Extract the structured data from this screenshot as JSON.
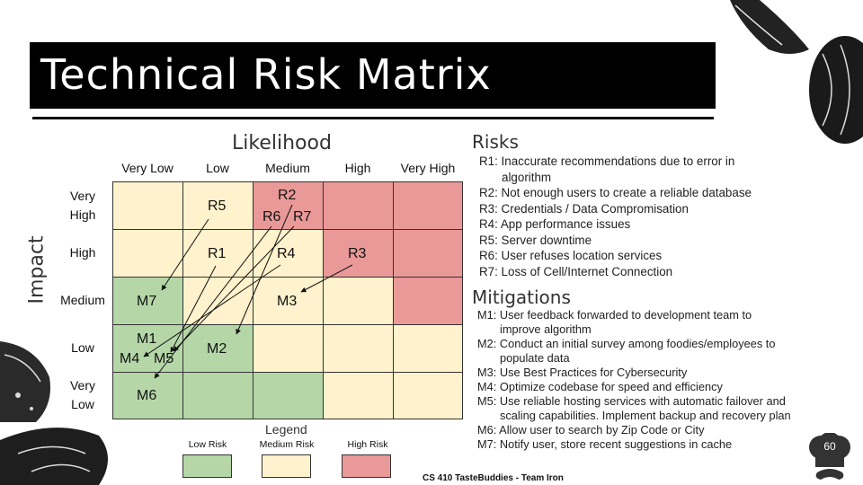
{
  "slide": {
    "title": "Technical Risk Matrix",
    "footer": "CS 410 TasteBuddies - Team Iron",
    "page_number": "60"
  },
  "matrix": {
    "x_title": "Likelihood",
    "y_title": "Impact",
    "columns": [
      "Very Low",
      "Low",
      "Medium",
      "High",
      "Very High"
    ],
    "rows": [
      [
        "Very",
        "High"
      ],
      [
        "High"
      ],
      [
        "Medium"
      ],
      [
        "Low"
      ],
      [
        "Very",
        "Low"
      ]
    ],
    "colors": {
      "low": "#b5d7a8",
      "medium": "#fff2cc",
      "high": "#ea9999"
    },
    "levels": [
      [
        "medium",
        "medium",
        "high",
        "high",
        "high"
      ],
      [
        "medium",
        "medium",
        "medium",
        "high",
        "high"
      ],
      [
        "low",
        "medium",
        "medium",
        "medium",
        "high"
      ],
      [
        "low",
        "low",
        "medium",
        "medium",
        "medium"
      ],
      [
        "low",
        "low",
        "low",
        "medium",
        "medium"
      ]
    ],
    "risk_labels": [
      "R1",
      "R2",
      "R3",
      "R4",
      "R5",
      "R6",
      "R7"
    ],
    "mitigation_labels": [
      "M1",
      "M2",
      "M3",
      "M4",
      "M5",
      "M6",
      "M7"
    ]
  },
  "legend": {
    "title": "Legend",
    "items": [
      {
        "label": "Low Risk",
        "level": "low"
      },
      {
        "label": "Medium Risk",
        "level": "medium"
      },
      {
        "label": "High Risk",
        "level": "high"
      }
    ]
  },
  "risks": {
    "heading": "Risks",
    "items": [
      {
        "main": "R1: Inaccurate recommendations due to error in",
        "cont": "algorithm"
      },
      {
        "main": "R2: Not enough users to create a reliable database"
      },
      {
        "main": "R3: Credentials / Data Compromisation"
      },
      {
        "main": "R4: App performance issues"
      },
      {
        "main": "R5: Server downtime"
      },
      {
        "main": "R6: User refuses location services"
      },
      {
        "main": "R7: Loss of Cell/Internet Connection"
      }
    ]
  },
  "mitigations": {
    "heading": "Mitigations",
    "items": [
      {
        "main": "M1: User feedback forwarded to development team to",
        "cont": "improve algorithm"
      },
      {
        "main": "M2: Conduct an initial survey among foodies/employees to",
        "cont": "populate data"
      },
      {
        "main": "M3: Use Best Practices for Cybersecurity"
      },
      {
        "main": "M4: Optimize codebase for speed and efficiency"
      },
      {
        "main": "M5: Use reliable hosting services with automatic failover and",
        "cont": "scaling capabilities. Implement backup and recovery plan"
      },
      {
        "main": "M6: Allow user to search by Zip Code or City"
      },
      {
        "main": "M7: Notify user, store recent suggestions in cache"
      }
    ]
  }
}
